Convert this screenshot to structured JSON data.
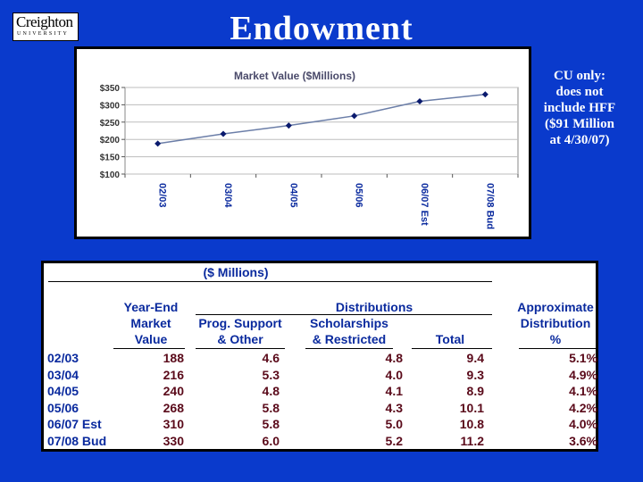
{
  "logo": {
    "name": "Creighton",
    "sub": "UNIVERSITY"
  },
  "page": {
    "title": "Endowment"
  },
  "note": {
    "lines": [
      "CU only:",
      "does not",
      "include HFF",
      "($91 Million",
      "at 4/30/07)"
    ]
  },
  "chart_data": {
    "type": "line",
    "title": "Market Value ($Millions)",
    "categories": [
      "02/03",
      "03/04",
      "04/05",
      "05/06",
      "06/07 Est",
      "07/08 Bud"
    ],
    "values": [
      188,
      216,
      240,
      268,
      310,
      330
    ],
    "ylim": [
      100,
      350
    ],
    "yticks": [
      100,
      150,
      200,
      250,
      300,
      350
    ],
    "ytick_labels": [
      "$100",
      "$150",
      "$200",
      "$250",
      "$300",
      "$350"
    ],
    "xlabel": "",
    "ylabel": "",
    "colors": {
      "line": "#6b7ea8",
      "marker": "#0a1a6e",
      "grid": "#bdbdbd",
      "title": "#4a4a6a",
      "tick": "#0a2a9e"
    }
  },
  "table": {
    "units_label": "($ Millions)",
    "headers": {
      "year_end": [
        "Year-End",
        "Market",
        "Value"
      ],
      "distributions": "Distributions",
      "prog_support": [
        "Prog. Support",
        "& Other"
      ],
      "scholarships": [
        "Scholarships",
        "& Restricted"
      ],
      "total": "Total",
      "approx": [
        "Approximate",
        "Distribution",
        "%"
      ]
    },
    "rows": [
      {
        "year": "02/03",
        "market_value": "188",
        "prog_support": "4.6",
        "scholarships": "4.8",
        "total": "9.4",
        "pct": "5.1%"
      },
      {
        "year": "03/04",
        "market_value": "216",
        "prog_support": "5.3",
        "scholarships": "4.0",
        "total": "9.3",
        "pct": "4.9%"
      },
      {
        "year": "04/05",
        "market_value": "240",
        "prog_support": "4.8",
        "scholarships": "4.1",
        "total": "8.9",
        "pct": "4.1%"
      },
      {
        "year": "05/06",
        "market_value": "268",
        "prog_support": "5.8",
        "scholarships": "4.3",
        "total": "10.1",
        "pct": "4.2%"
      },
      {
        "year": "06/07 Est",
        "market_value": "310",
        "prog_support": "5.8",
        "scholarships": "5.0",
        "total": "10.8",
        "pct": "4.0%"
      },
      {
        "year": "07/08 Bud",
        "market_value": "330",
        "prog_support": "6.0",
        "scholarships": "5.2",
        "total": "11.2",
        "pct": "3.6%"
      }
    ]
  }
}
